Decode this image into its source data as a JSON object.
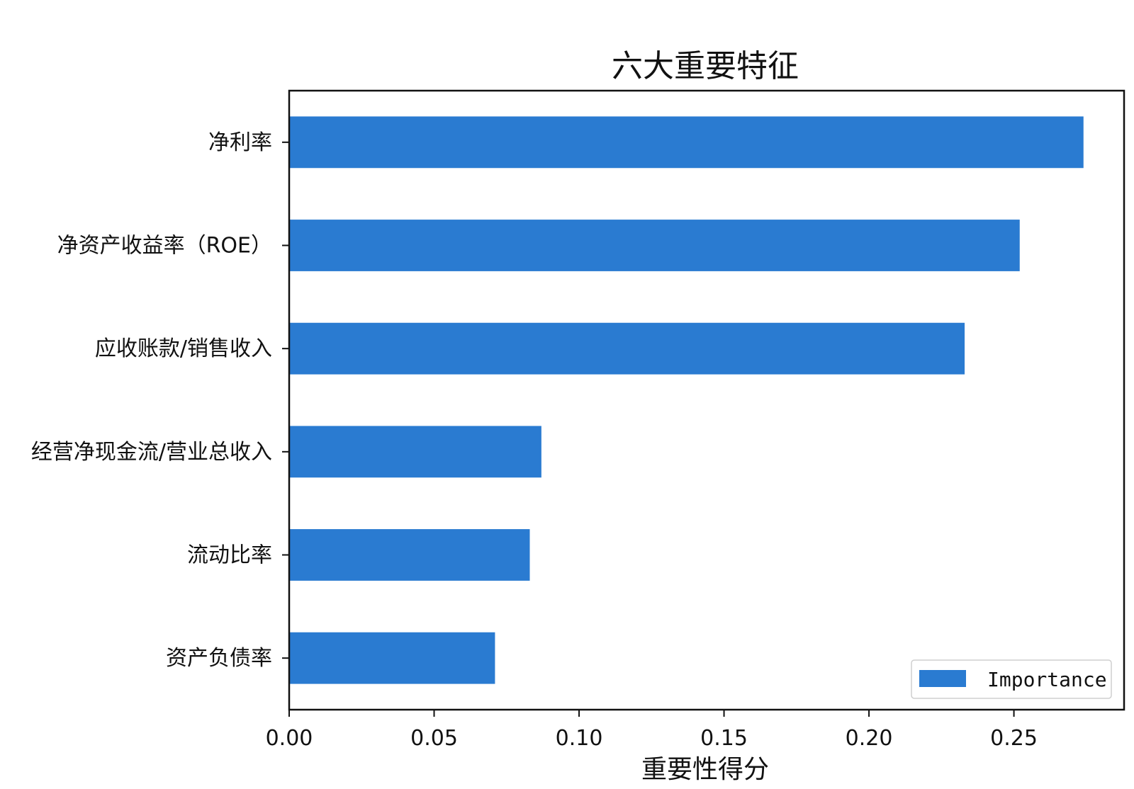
{
  "chart_data": {
    "type": "bar",
    "orientation": "horizontal",
    "title": "六大重要特征",
    "xlabel": "重要性得分",
    "ylabel": "",
    "categories": [
      "净利率",
      "净资产收益率（ROE）",
      "应收账款/销售收入",
      "经营净现金流/营业总收入",
      "流动比率",
      "资产负债率"
    ],
    "series": [
      {
        "name": "Importance",
        "values": [
          0.274,
          0.252,
          0.233,
          0.087,
          0.083,
          0.071
        ],
        "color": "#2a7bd1"
      }
    ],
    "xlim": [
      0,
      0.288
    ],
    "xticks": [
      0.0,
      0.05,
      0.1,
      0.15,
      0.2,
      0.25
    ],
    "xtick_labels": [
      "0.00",
      "0.05",
      "0.10",
      "0.15",
      "0.20",
      "0.25"
    ],
    "grid": false,
    "legend": {
      "position": "lower-right",
      "entries": [
        "Importance"
      ]
    }
  }
}
